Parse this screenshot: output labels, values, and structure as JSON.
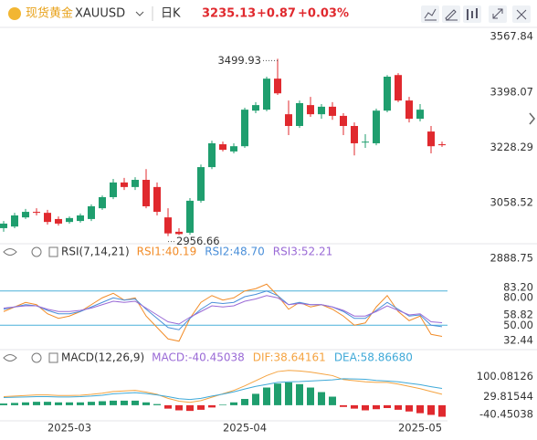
{
  "header": {
    "name": "现货黄金",
    "symbol": "XAUUSD",
    "period": "日K",
    "price": "3235.13",
    "change": "+0.87",
    "change_pct": "+0.03%"
  },
  "chart_data": [
    {
      "type": "candlestick",
      "up_color": "#1f9e6e",
      "down_color": "#e0292e",
      "categories": [
        null,
        null,
        null,
        null,
        null,
        null,
        "2025-03",
        null,
        null,
        null,
        null,
        null,
        null,
        null,
        null,
        null,
        null,
        null,
        null,
        null,
        null,
        null,
        "2025-04",
        null,
        null,
        null,
        null,
        null,
        null,
        null,
        null,
        null,
        null,
        null,
        null,
        null,
        null,
        null,
        "2025-05",
        null,
        null
      ],
      "ohlc": [
        [
          2981,
          3003,
          2970,
          2995
        ],
        [
          2986,
          3028,
          2981,
          3020
        ],
        [
          3014,
          3040,
          3009,
          3031
        ],
        [
          3031,
          3042,
          3020,
          3028
        ],
        [
          3028,
          3037,
          2992,
          3000
        ],
        [
          3009,
          3017,
          2989,
          2995
        ],
        [
          3000,
          3017,
          2995,
          3012
        ],
        [
          3003,
          3026,
          2998,
          3020
        ],
        [
          3009,
          3054,
          3003,
          3048
        ],
        [
          3042,
          3081,
          3037,
          3076
        ],
        [
          3076,
          3132,
          3070,
          3121
        ],
        [
          3121,
          3135,
          3098,
          3107
        ],
        [
          3107,
          3137,
          3098,
          3129
        ],
        [
          3129,
          3162,
          3042,
          3048
        ],
        [
          3107,
          3121,
          3020,
          3031
        ],
        [
          3014,
          3042,
          2956.66,
          2965
        ],
        [
          2970,
          2981,
          2960,
          2963
        ],
        [
          2967,
          3073,
          2961,
          3065
        ],
        [
          3065,
          3176,
          3059,
          3168
        ],
        [
          3168,
          3249,
          3162,
          3241
        ],
        [
          3238,
          3246,
          3216,
          3221
        ],
        [
          3216,
          3241,
          3210,
          3232
        ],
        [
          3232,
          3350,
          3227,
          3344
        ],
        [
          3341,
          3367,
          3333,
          3358
        ],
        [
          3344,
          3445,
          3339,
          3439
        ],
        [
          3439,
          3499.93,
          3389,
          3394
        ],
        [
          3330,
          3372,
          3266,
          3294
        ],
        [
          3294,
          3372,
          3288,
          3364
        ],
        [
          3358,
          3383,
          3322,
          3330
        ],
        [
          3330,
          3361,
          3316,
          3353
        ],
        [
          3353,
          3367,
          3313,
          3325
        ],
        [
          3325,
          3333,
          3266,
          3294
        ],
        [
          3294,
          3305,
          3204,
          3241
        ],
        [
          3244,
          3269,
          3227,
          3246
        ],
        [
          3241,
          3347,
          3235,
          3341
        ],
        [
          3341,
          3450,
          3336,
          3445
        ],
        [
          3450,
          3456,
          3367,
          3372
        ],
        [
          3372,
          3383,
          3305,
          3316
        ],
        [
          3316,
          3361,
          3308,
          3344
        ],
        [
          3277,
          3294,
          3210,
          3232
        ],
        [
          3238,
          3246,
          3230,
          3235.13
        ]
      ],
      "annotations": [
        "3499.93",
        "2956.66"
      ],
      "ylim": [
        2869,
        3596
      ],
      "yticks": [
        3567.84,
        3398.07,
        3228.29,
        3058.52,
        2888.75
      ]
    },
    {
      "type": "line",
      "title": "RSI(7,14,21)",
      "ylim": [
        31,
        103
      ],
      "line_color": "#4ab0d9",
      "reference_lines": [
        {
          "value": 80,
          "label": "80.00"
        },
        {
          "value": 50,
          "label": "50.00"
        }
      ],
      "yticks": [
        {
          "value": 83.2,
          "label": "83.20"
        },
        {
          "value": 58.82,
          "label": "58.82"
        },
        {
          "value": 32.44,
          "label": "32.44"
        }
      ],
      "series": [
        {
          "name": "RSI1:40.19",
          "color": "#f28c28",
          "values": [
            62,
            66,
            70,
            68,
            60,
            56,
            58,
            62,
            68,
            74,
            78,
            72,
            74,
            58,
            48,
            38,
            36,
            56,
            70,
            76,
            72,
            74,
            80,
            82,
            86,
            76,
            64,
            70,
            66,
            68,
            64,
            58,
            50,
            52,
            66,
            76,
            62,
            54,
            58,
            42,
            40.19
          ]
        },
        {
          "name": "RSI2:48.70",
          "color": "#4a8fd9",
          "values": [
            64,
            66,
            68,
            67,
            63,
            60,
            60,
            62,
            66,
            70,
            74,
            72,
            73,
            64,
            56,
            48,
            46,
            56,
            64,
            70,
            69,
            70,
            75,
            77,
            80,
            76,
            68,
            70,
            68,
            68,
            66,
            62,
            56,
            56,
            63,
            70,
            64,
            58,
            59,
            50,
            48.7
          ]
        },
        {
          "name": "RSI3:52.21",
          "color": "#9a6ad6",
          "values": [
            65,
            66,
            67,
            67,
            64,
            62,
            62,
            63,
            65,
            68,
            71,
            70,
            71,
            65,
            59,
            53,
            51,
            57,
            62,
            67,
            66,
            67,
            71,
            73,
            76,
            74,
            68,
            69,
            68,
            68,
            66,
            63,
            58,
            58,
            62,
            67,
            63,
            59,
            60,
            53,
            52.21
          ]
        }
      ]
    },
    {
      "type": "macd",
      "title": "MACD(12,26,9)",
      "ylim": [
        -58,
        147
      ],
      "yticks": [
        100.08126,
        29.81544,
        -40.45038
      ],
      "bars": {
        "name": "MACD:-40.45038",
        "color": "#9a6ad6",
        "up_color": "#1f9e6e",
        "down_color": "#e0292e",
        "values": [
          6,
          8,
          10,
          12,
          12,
          10,
          10,
          10,
          12,
          14,
          16,
          16,
          16,
          10,
          4,
          -12,
          -18,
          -20,
          -16,
          -8,
          2,
          10,
          22,
          40,
          62,
          76,
          80,
          74,
          62,
          46,
          30,
          -6,
          -12,
          -18,
          -14,
          -10,
          -16,
          -22,
          -28,
          -34,
          -40.45038
        ]
      },
      "series": [
        {
          "name": "DIF:38.64161",
          "color": "#f5a340",
          "values": [
            30,
            32,
            34,
            36,
            36,
            34,
            34,
            35,
            38,
            42,
            48,
            50,
            52,
            46,
            38,
            24,
            14,
            10,
            16,
            28,
            40,
            52,
            68,
            86,
            104,
            118,
            122,
            120,
            116,
            110,
            104,
            90,
            86,
            82,
            80,
            80,
            74,
            66,
            58,
            48,
            38.64161
          ]
        },
        {
          "name": "DEA:58.86680",
          "color": "#3fa9d8",
          "values": [
            27,
            28,
            29,
            30,
            30,
            29,
            29,
            30,
            32,
            35,
            40,
            42,
            44,
            41,
            36,
            30,
            23,
            20,
            24,
            32,
            39,
            47,
            57,
            66,
            73,
            80,
            82,
            83,
            85,
            87,
            89,
            93,
            92,
            91,
            87,
            85,
            82,
            77,
            72,
            65,
            58.8668
          ]
        }
      ]
    }
  ]
}
